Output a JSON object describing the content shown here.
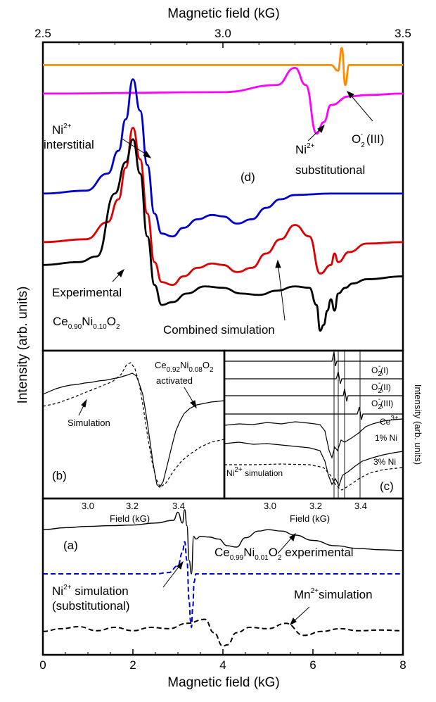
{
  "chart_data": [
    {
      "id": "panel-d",
      "type": "line",
      "panel_label": "(d)",
      "xlabel": "Magnetic field (kG)",
      "ylabel": "Intensity (arb. units)",
      "xlim": [
        2.5,
        3.5
      ],
      "x_ticks": [
        "2.5",
        "3.0",
        "3.5"
      ],
      "series": [
        {
          "name": "O2- (III)",
          "color": "#ff8c00",
          "x": [
            2.5,
            3.3,
            3.32,
            3.33,
            3.34,
            3.35,
            3.5
          ],
          "y": [
            10.0,
            10.0,
            9.8,
            10.6,
            9.3,
            10.0,
            10.0
          ]
        },
        {
          "name": "Ni2+ substitutional",
          "color": "#ff00ff",
          "x": [
            2.5,
            3.0,
            3.15,
            3.2,
            3.23,
            3.26,
            3.28,
            3.3,
            3.35,
            3.4,
            3.5
          ],
          "y": [
            9.0,
            9.05,
            9.3,
            9.9,
            9.3,
            7.6,
            8.0,
            8.6,
            8.9,
            8.95,
            9.0
          ]
        },
        {
          "name": "Ni2+ interstitial",
          "color": "#0000cc",
          "x": [
            2.5,
            2.62,
            2.68,
            2.71,
            2.73,
            2.75,
            2.77,
            2.79,
            2.81,
            2.83,
            2.86,
            2.89,
            2.93,
            2.97,
            3.0,
            3.04,
            3.08,
            3.12,
            3.16,
            3.2,
            3.3,
            3.5
          ],
          "y": [
            5.5,
            5.6,
            6.2,
            7.0,
            8.1,
            9.5,
            8.4,
            6.5,
            4.8,
            4.1,
            4.0,
            4.3,
            4.6,
            4.75,
            4.7,
            4.45,
            4.6,
            5.0,
            5.3,
            5.45,
            5.5,
            5.5
          ]
        },
        {
          "name": "Combined simulation",
          "color": "#dd0000",
          "x": [
            2.5,
            2.62,
            2.68,
            2.71,
            2.73,
            2.75,
            2.77,
            2.79,
            2.81,
            2.83,
            2.86,
            2.89,
            2.93,
            2.97,
            3.0,
            3.04,
            3.08,
            3.12,
            3.16,
            3.2,
            3.24,
            3.27,
            3.3,
            3.31,
            3.32,
            3.35,
            3.4,
            3.5
          ],
          "y": [
            3.8,
            3.9,
            4.5,
            5.3,
            6.4,
            7.8,
            6.7,
            4.8,
            3.1,
            2.4,
            2.3,
            2.6,
            2.9,
            3.05,
            3.0,
            2.75,
            2.9,
            3.4,
            3.9,
            4.4,
            4.0,
            2.7,
            3.0,
            3.4,
            3.1,
            3.45,
            3.75,
            3.8
          ]
        },
        {
          "name": "Experimental",
          "color": "#000000",
          "x": [
            2.5,
            2.6,
            2.65,
            2.7,
            2.73,
            2.75,
            2.77,
            2.79,
            2.81,
            2.83,
            2.86,
            2.9,
            2.95,
            3.0,
            3.05,
            3.1,
            3.15,
            3.2,
            3.24,
            3.26,
            3.27,
            3.28,
            3.29,
            3.3,
            3.31,
            3.32,
            3.34,
            3.36,
            3.4,
            3.5
          ],
          "y": [
            3.0,
            3.1,
            3.3,
            5.5,
            6.6,
            7.4,
            6.2,
            4.0,
            2.3,
            1.6,
            1.7,
            2.0,
            2.25,
            2.2,
            2.0,
            1.95,
            2.1,
            2.25,
            2.2,
            1.6,
            0.7,
            0.9,
            1.4,
            1.8,
            1.4,
            2.0,
            2.2,
            2.35,
            2.5,
            2.6
          ]
        }
      ],
      "annotations": [
        {
          "text": "Ni",
          "sup": "2+",
          "after": ""
        },
        {
          "text": "interstitial"
        },
        {
          "text": "Ni",
          "sup": "2+",
          "after": ""
        },
        {
          "text": "substitutional"
        },
        {
          "text": "O",
          "sub": "2",
          "sup": "-",
          "after": " (III)"
        },
        {
          "text": "Experimental"
        },
        {
          "text": "Combined simulation"
        }
      ],
      "formula": {
        "parts": [
          [
            "Ce",
            ""
          ],
          [
            "0.90",
            "sub"
          ],
          [
            "Ni",
            ""
          ],
          [
            "0.10",
            "sub"
          ],
          [
            "O",
            ""
          ],
          [
            "2",
            "sub"
          ]
        ]
      }
    },
    {
      "id": "panel-b",
      "type": "line",
      "panel_label": "(b)",
      "xlabel": "Field (kG)",
      "x_ticks": [
        "3.0",
        "3.2",
        "3.4"
      ],
      "series": [
        {
          "name": "activated",
          "color": "#000000",
          "dash": false
        },
        {
          "name": "Simulation",
          "color": "#000000",
          "dash": true
        }
      ],
      "formula": {
        "parts": [
          [
            "Ce",
            ""
          ],
          [
            "0.92",
            "sub"
          ],
          [
            "Ni",
            ""
          ],
          [
            "0.08",
            "sub"
          ],
          [
            "O",
            ""
          ],
          [
            "2",
            "sub"
          ]
        ]
      },
      "labels": {
        "activated": "activated",
        "simulation": "Simulation"
      }
    },
    {
      "id": "panel-c",
      "type": "line",
      "panel_label": "(c)",
      "xlabel": "Field (kG)",
      "ylabel": "Intensity (arb. units)",
      "x_ticks": [
        "3.0",
        "3.2",
        "3.4"
      ],
      "series": [
        {
          "name": "O2-(I)",
          "color": "#000000"
        },
        {
          "name": "O2-(II)",
          "color": "#000000"
        },
        {
          "name": "O2-(III)",
          "color": "#000000"
        },
        {
          "name": "Ce3+",
          "color": "#000000"
        },
        {
          "name": "1% Ni",
          "color": "#000000"
        },
        {
          "name": "3% Ni",
          "color": "#000000"
        },
        {
          "name": "Ni2+ simulation",
          "color": "#000000",
          "dash": true
        }
      ],
      "labels": {
        "o2_i": [
          "O",
          "2",
          "-",
          "(I)"
        ],
        "o2_ii": [
          "O",
          "2",
          "-",
          "(II)"
        ],
        "o2_iii": [
          "O",
          "2",
          "-",
          "(III)"
        ],
        "ce": [
          "Ce",
          "3+"
        ],
        "ni1": "1% Ni",
        "ni3": "3% Ni",
        "nisim": [
          "Ni",
          "2+",
          " simulation"
        ]
      }
    },
    {
      "id": "panel-a",
      "type": "line",
      "panel_label": "(a)",
      "xlabel": "Magnetic field (kG)",
      "xlim": [
        0,
        8
      ],
      "x_ticks": [
        "0",
        "2",
        "4",
        "6",
        "8"
      ],
      "series": [
        {
          "name": "Ce0.99Ni0.01O2 experimental",
          "color": "#000000",
          "x": [
            0,
            0.5,
            1.0,
            1.5,
            2.0,
            2.5,
            2.9,
            3.0,
            3.1,
            3.15,
            3.2,
            3.25,
            3.3,
            3.35,
            3.4,
            3.5,
            3.7,
            3.9,
            4.1,
            4.3,
            4.5,
            4.8,
            5.0,
            5.3,
            5.6,
            6.0,
            6.5,
            7.0,
            7.5,
            8.0
          ],
          "y": [
            8.3,
            8.45,
            8.55,
            8.6,
            8.65,
            8.8,
            9.0,
            9.6,
            8.8,
            9.8,
            8.6,
            6.0,
            5.0,
            7.8,
            7.6,
            7.8,
            7.75,
            7.6,
            7.1,
            7.0,
            7.7,
            8.2,
            8.3,
            8.2,
            7.9,
            7.5,
            7.1,
            6.9,
            6.8,
            6.75
          ]
        },
        {
          "name": "Ni2+ simulation (substitutional)",
          "color": "#0000cc",
          "x": [
            0,
            2.5,
            2.8,
            3.0,
            3.1,
            3.15,
            3.2,
            3.25,
            3.28,
            3.3,
            3.33,
            3.36,
            3.4,
            3.5,
            3.8,
            8.0
          ],
          "y": [
            5.0,
            5.0,
            5.1,
            5.6,
            6.6,
            7.4,
            6.0,
            3.0,
            1.5,
            1.0,
            2.5,
            4.4,
            5.0,
            5.0,
            5.0,
            5.0
          ]
        },
        {
          "name": "Mn2+simulation",
          "color": "#000000",
          "dash": true,
          "x": [
            0,
            0.4,
            0.8,
            1.2,
            1.6,
            2.0,
            2.4,
            2.8,
            3.2,
            3.6,
            3.8,
            4.0,
            4.1,
            4.3,
            4.6,
            5.0,
            5.4,
            5.8,
            6.2,
            6.6,
            7.0,
            7.5,
            8.0
          ],
          "y": [
            0.7,
            0.9,
            1.05,
            0.75,
            1.0,
            0.75,
            1.0,
            0.9,
            1.3,
            1.6,
            0.6,
            -0.4,
            -0.3,
            0.6,
            1.0,
            0.9,
            1.3,
            0.4,
            0.7,
            0.9,
            0.75,
            0.8,
            0.75
          ]
        }
      ],
      "formula": {
        "parts": [
          [
            "Ce",
            ""
          ],
          [
            "0.99",
            "sub"
          ],
          [
            "Ni",
            ""
          ],
          [
            "0.01",
            "sub"
          ],
          [
            "O",
            ""
          ],
          [
            "2",
            "sub"
          ],
          [
            " experimental",
            ""
          ]
        ]
      },
      "labels": {
        "ni_sim_line1": [
          "Ni",
          "2+",
          " simulation"
        ],
        "ni_sim_line2": "(substitutional)",
        "mn_sim": [
          "Mn",
          "2+",
          "simulation"
        ]
      }
    }
  ]
}
